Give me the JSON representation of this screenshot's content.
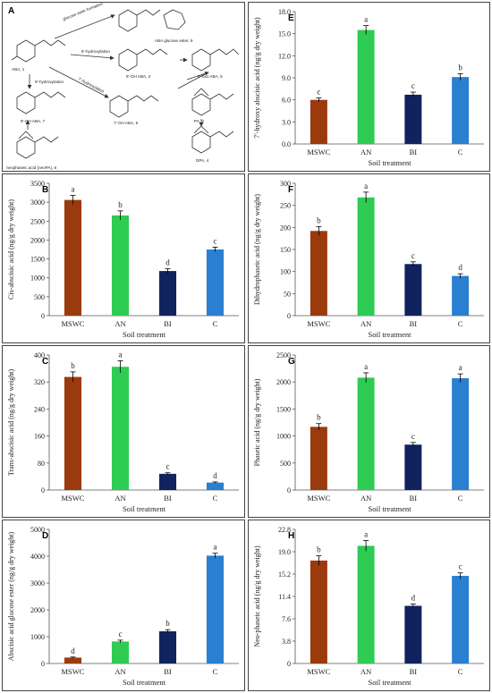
{
  "diagram": {
    "label": "A",
    "nodes": {
      "aba": "ABA, 1",
      "glucose_ester": "ABA glucose ester, 9",
      "oh8": "8'-OH ABA, 2",
      "oxo8": "8'-oxo ABA, 5",
      "oh9": "9'-OH ABA, 7",
      "oh7": "7'-OH ABA, 6",
      "pa": "PA, 3",
      "neopa": "neophaseic acid (neoPA), 8",
      "dpa": "DPA, 4"
    },
    "edges": {
      "glucose": "glucose ester formation",
      "h8": "8'-hydroxylation",
      "h9": "9'-hydroxylation",
      "h7": "7'-hydroxylation"
    }
  },
  "chart_data": [
    {
      "id": "E",
      "type": "bar",
      "panel_label": "E",
      "categories": [
        "MSWC",
        "AN",
        "BI",
        "C"
      ],
      "values": [
        6.0,
        15.5,
        6.7,
        9.1
      ],
      "errors": [
        0.25,
        0.6,
        0.35,
        0.45
      ],
      "letters": [
        "c",
        "a",
        "c",
        "b"
      ],
      "colors": [
        "#9b3a0c",
        "#2ecc52",
        "#10235f",
        "#2a7fd0"
      ],
      "ylabel": "7'-hydroxy abscisic acid (ng/g dry weight)",
      "xlabel": "Soil treatment",
      "ylim": [
        0,
        18
      ],
      "yticks": [
        0.0,
        3.0,
        6.0,
        9.0,
        12.0,
        15.0,
        18.0
      ],
      "ytick_labels": [
        "0.0",
        "3.0",
        "6.0",
        "9.0",
        "12.0",
        "15.0",
        "18.0"
      ]
    },
    {
      "id": "B",
      "type": "bar",
      "panel_label": "B",
      "categories": [
        "MSWC",
        "AN",
        "BI",
        "C"
      ],
      "values": [
        3060,
        2650,
        1180,
        1750
      ],
      "errors": [
        120,
        120,
        60,
        60
      ],
      "letters": [
        "a",
        "b",
        "d",
        "c"
      ],
      "colors": [
        "#9b3a0c",
        "#2ecc52",
        "#10235f",
        "#2a7fd0"
      ],
      "ylabel": "Cis-abscisic acid (ng/g dry weight)",
      "xlabel": "Soil treatment",
      "ylim": [
        0,
        3500
      ],
      "yticks": [
        0,
        500,
        1000,
        1500,
        2000,
        2500,
        3000,
        3500
      ],
      "ytick_labels": [
        "0",
        "500",
        "1000",
        "1500",
        "2000",
        "2500",
        "3000",
        "3500"
      ]
    },
    {
      "id": "F",
      "type": "bar",
      "panel_label": "F",
      "categories": [
        "MSWC",
        "AN",
        "BI",
        "C"
      ],
      "values": [
        192,
        268,
        117,
        90
      ],
      "errors": [
        10,
        12,
        5,
        5
      ],
      "letters": [
        "b",
        "a",
        "c",
        "d"
      ],
      "colors": [
        "#9b3a0c",
        "#2ecc52",
        "#10235f",
        "#2a7fd0"
      ],
      "ylabel": "Dihydrophaseic acid (ng/g dry weight)",
      "xlabel": "Soil treatment",
      "ylim": [
        0,
        300
      ],
      "yticks": [
        0,
        50,
        100,
        150,
        200,
        250,
        300
      ],
      "ytick_labels": [
        "0",
        "50",
        "100",
        "150",
        "200",
        "250",
        "300"
      ]
    },
    {
      "id": "C",
      "type": "bar",
      "panel_label": "C",
      "categories": [
        "MSWC",
        "AN",
        "BI",
        "C"
      ],
      "values": [
        335,
        365,
        48,
        22
      ],
      "errors": [
        15,
        18,
        3,
        2
      ],
      "letters": [
        "b",
        "a",
        "c",
        "d"
      ],
      "colors": [
        "#9b3a0c",
        "#2ecc52",
        "#10235f",
        "#2a7fd0"
      ],
      "ylabel": "Trans-abscisic acid (ng/g dry weight)",
      "xlabel": "Soil treatment",
      "ylim": [
        0,
        400
      ],
      "yticks": [
        0,
        80,
        160,
        240,
        320,
        400
      ],
      "ytick_labels": [
        "0",
        "80",
        "160",
        "240",
        "320",
        "400"
      ]
    },
    {
      "id": "G",
      "type": "bar",
      "panel_label": "G",
      "categories": [
        "MSWC",
        "AN",
        "BI",
        "C"
      ],
      "values": [
        1170,
        2080,
        840,
        2070
      ],
      "errors": [
        60,
        90,
        40,
        80
      ],
      "letters": [
        "b",
        "a",
        "c",
        "a"
      ],
      "colors": [
        "#9b3a0c",
        "#2ecc52",
        "#10235f",
        "#2a7fd0"
      ],
      "ylabel": "Phaseic acid (ng/g dry weight)",
      "xlabel": "Soil treatment",
      "ylim": [
        0,
        2500
      ],
      "yticks": [
        0,
        500,
        1000,
        1500,
        2000,
        2500
      ],
      "ytick_labels": [
        "0",
        "500",
        "1000",
        "1500",
        "2000",
        "2500"
      ]
    },
    {
      "id": "D",
      "type": "bar",
      "panel_label": "D",
      "categories": [
        "MSWC",
        "AN",
        "BI",
        "C"
      ],
      "values": [
        220,
        820,
        1200,
        4020
      ],
      "errors": [
        20,
        50,
        60,
        90
      ],
      "letters": [
        "d",
        "c",
        "b",
        "a"
      ],
      "colors": [
        "#9b3a0c",
        "#2ecc52",
        "#10235f",
        "#2a7fd0"
      ],
      "ylabel": "Abscisic acid glucose ester (ng/g dry weight)",
      "xlabel": "Soil treatment",
      "ylim": [
        0,
        5000
      ],
      "yticks": [
        0,
        1000,
        2000,
        3000,
        4000,
        5000
      ],
      "ytick_labels": [
        "0",
        "1000",
        "2000",
        "3000",
        "4000",
        "5000"
      ]
    },
    {
      "id": "H",
      "type": "bar",
      "panel_label": "H",
      "categories": [
        "MSWC",
        "AN",
        "BI",
        "C"
      ],
      "values": [
        17.5,
        20.0,
        9.8,
        14.9
      ],
      "errors": [
        0.8,
        0.9,
        0.3,
        0.5
      ],
      "letters": [
        "b",
        "a",
        "d",
        "c"
      ],
      "colors": [
        "#9b3a0c",
        "#2ecc52",
        "#10235f",
        "#2a7fd0"
      ],
      "ylabel": "Neo-phaseic acid (ng/g dry weight)",
      "xlabel": "Soil treatment",
      "ylim": [
        0,
        22.8
      ],
      "yticks": [
        0,
        3.8,
        7.6,
        11.4,
        15.2,
        19.0,
        22.8
      ],
      "ytick_labels": [
        "0",
        "3.8",
        "7.6",
        "11.4",
        "15.2",
        "19.0",
        "22.8"
      ]
    }
  ]
}
